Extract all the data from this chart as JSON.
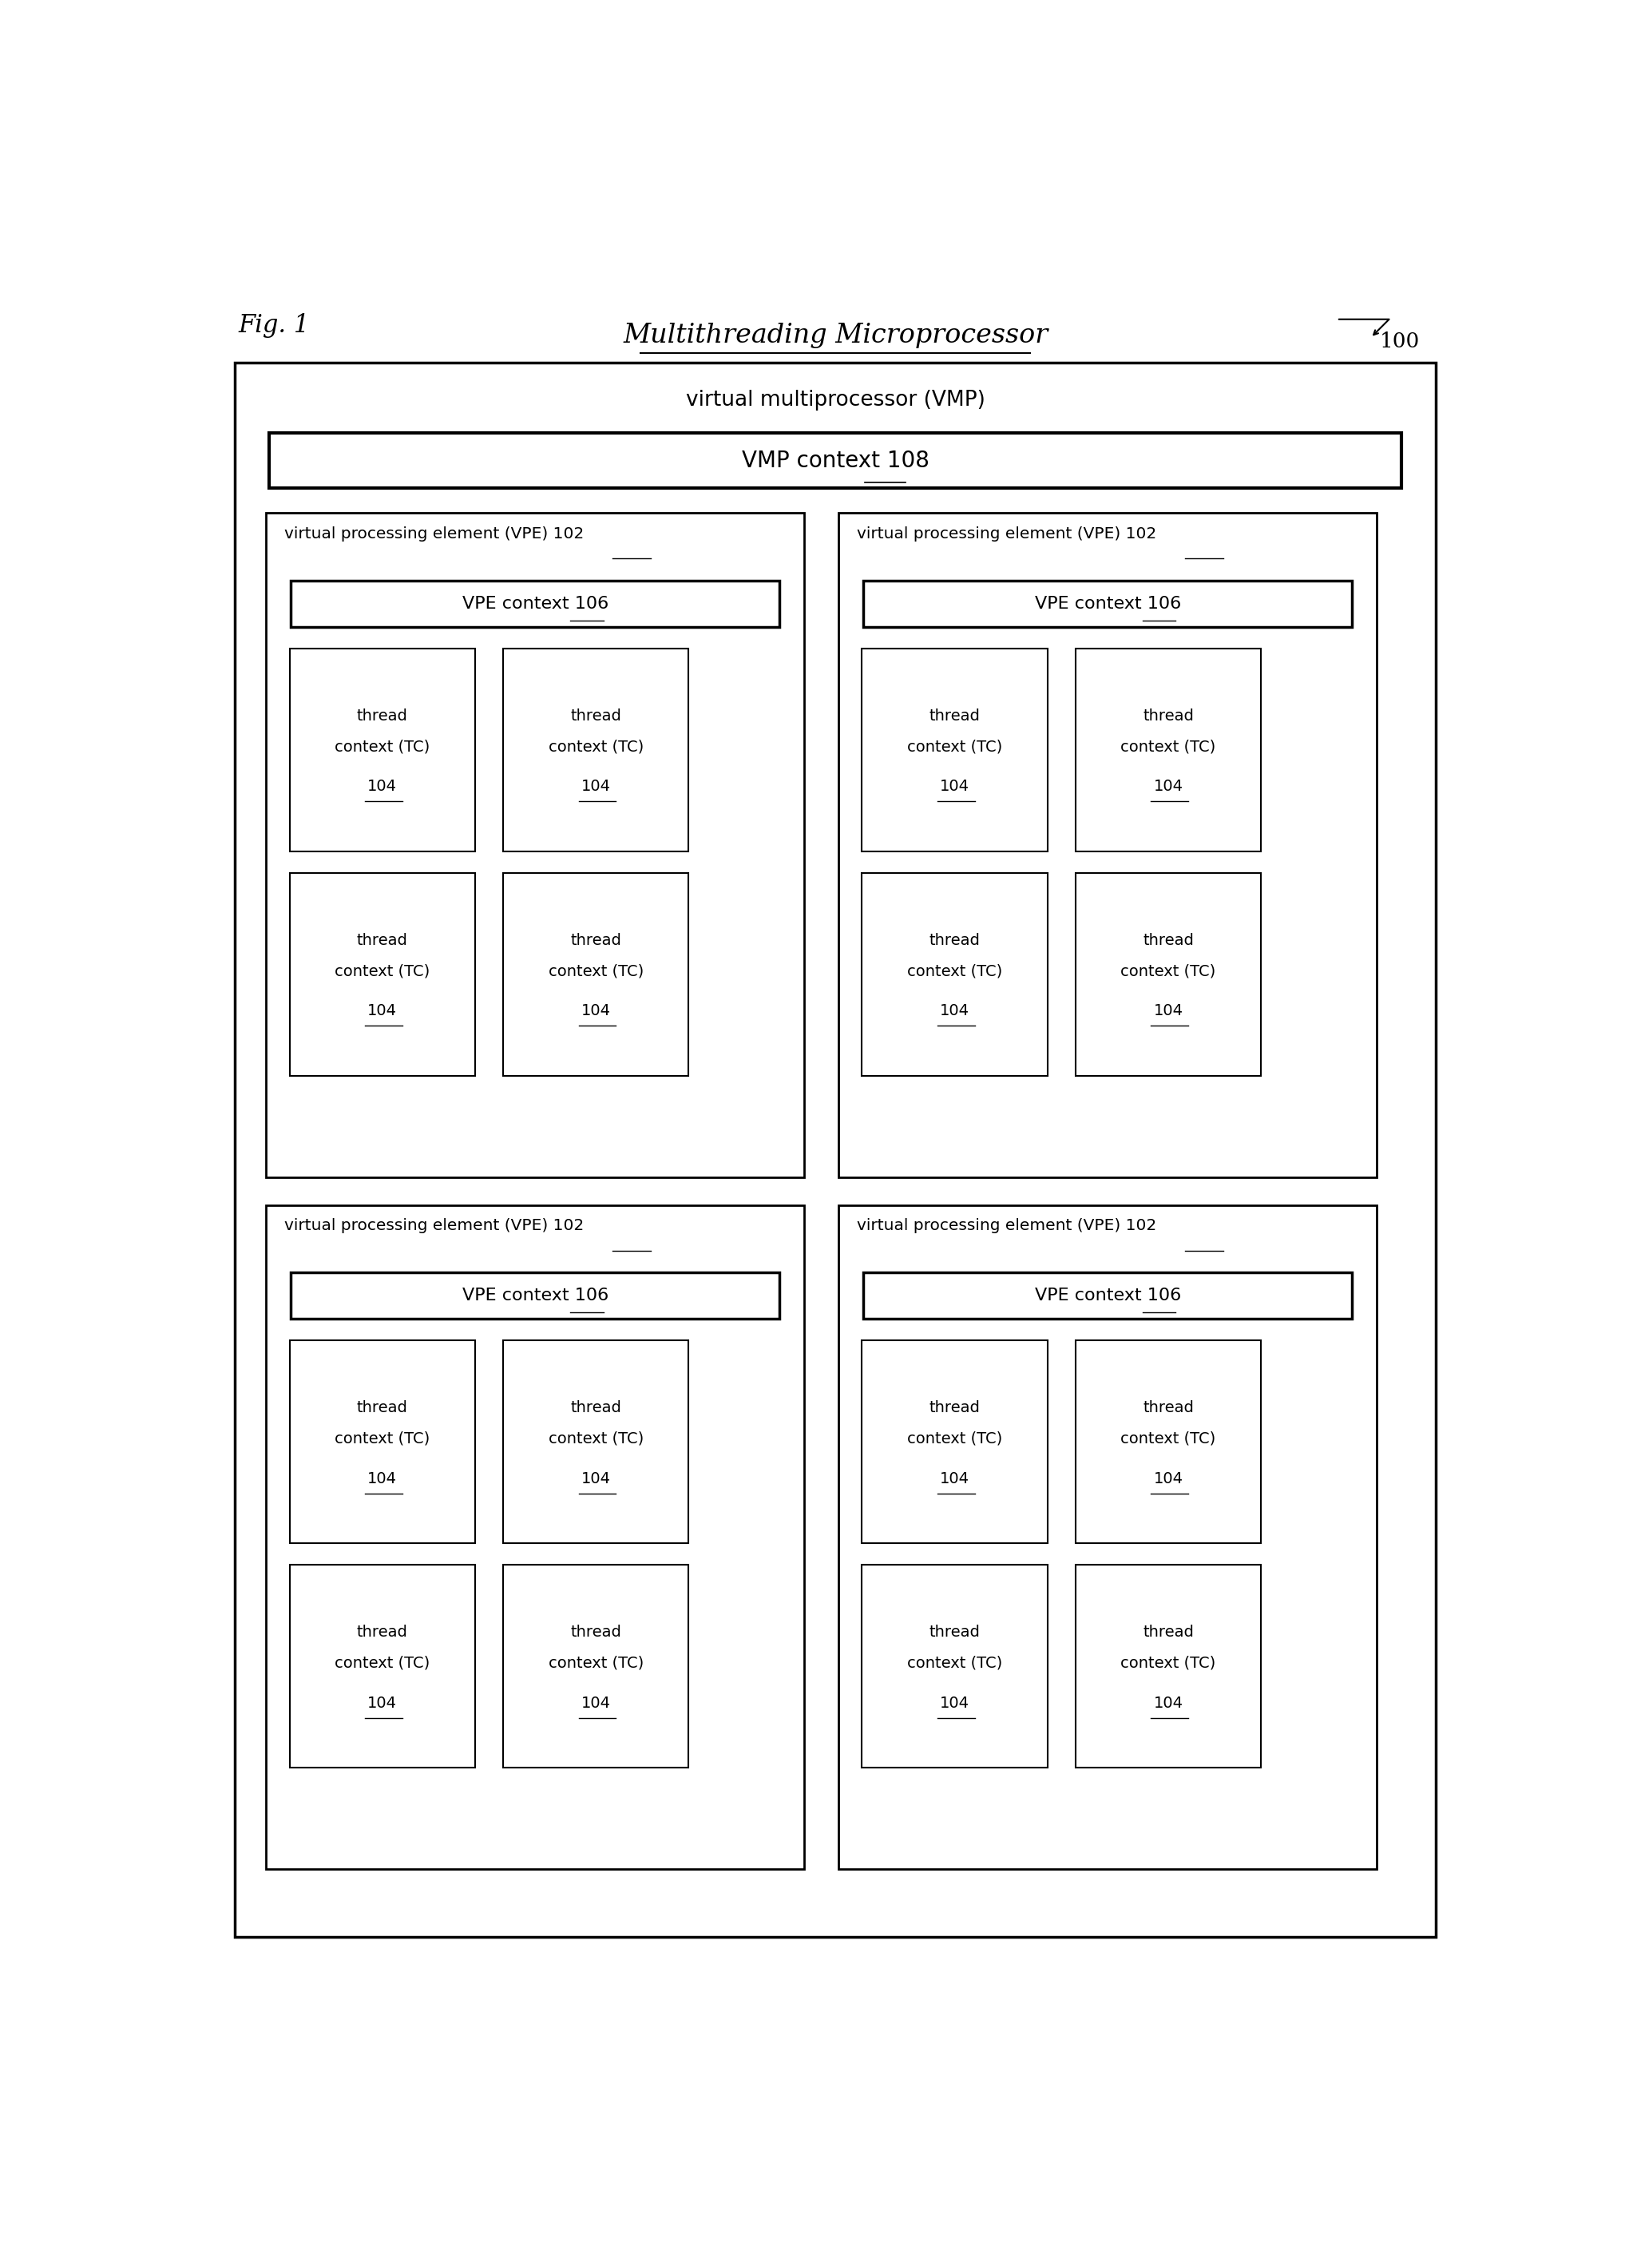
{
  "fig_label": "Fig. 1",
  "title": "Multithreading Microprocessor",
  "ref_number": "100",
  "bg_color": "#ffffff",
  "vmp_label": "virtual multiprocessor (VMP)",
  "vmp_context_label": "VMP context 108",
  "vpe_label": "virtual processing element (VPE) 102",
  "vpe_context_label": "VPE context 106",
  "tc_label_line1": "thread",
  "tc_label_line2": "context (TC)",
  "tc_label_line3": "104",
  "lw_outer": 2.5,
  "lw_inner": 2.0,
  "lw_vpe_ctx": 2.5,
  "lw_tc": 1.5,
  "fig_w": 20.45,
  "fig_h": 28.37
}
